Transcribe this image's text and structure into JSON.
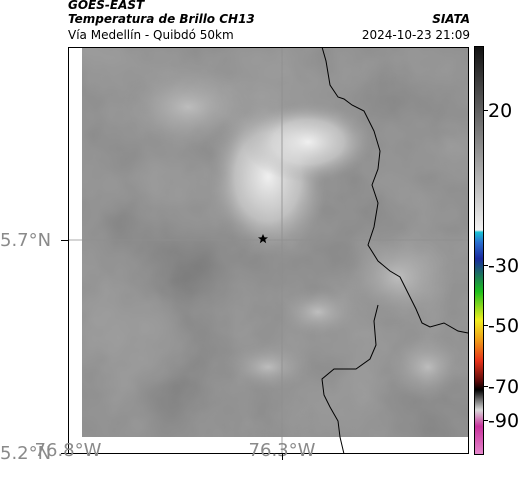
{
  "header": {
    "satellite": "GOES-EAST",
    "product": "Temperatura de Brillo CH13",
    "organization": "SIATA",
    "subtitle": "Vía Medellín - Quibdó 50km",
    "timestamp": "2024-10-23 21:09"
  },
  "map": {
    "marker_icon": "star-icon",
    "lat_labels": [
      "5.7°N",
      "5.2°N"
    ],
    "lon_labels": [
      "76.8°W",
      "76.3°W"
    ]
  },
  "colorbar": {
    "ticks": [
      "20",
      "-30",
      "-50",
      "-70",
      "-90"
    ],
    "colors": {
      "gray_top": "#111111",
      "gray_bottom": "#f2f2f2",
      "cyan": "#19c3d6",
      "blue": "#1a2a9e",
      "green": "#1cbf1c",
      "yellow": "#f0ee20",
      "red": "#e6321a",
      "black": "#000000",
      "magenta": "#c8329c"
    }
  }
}
